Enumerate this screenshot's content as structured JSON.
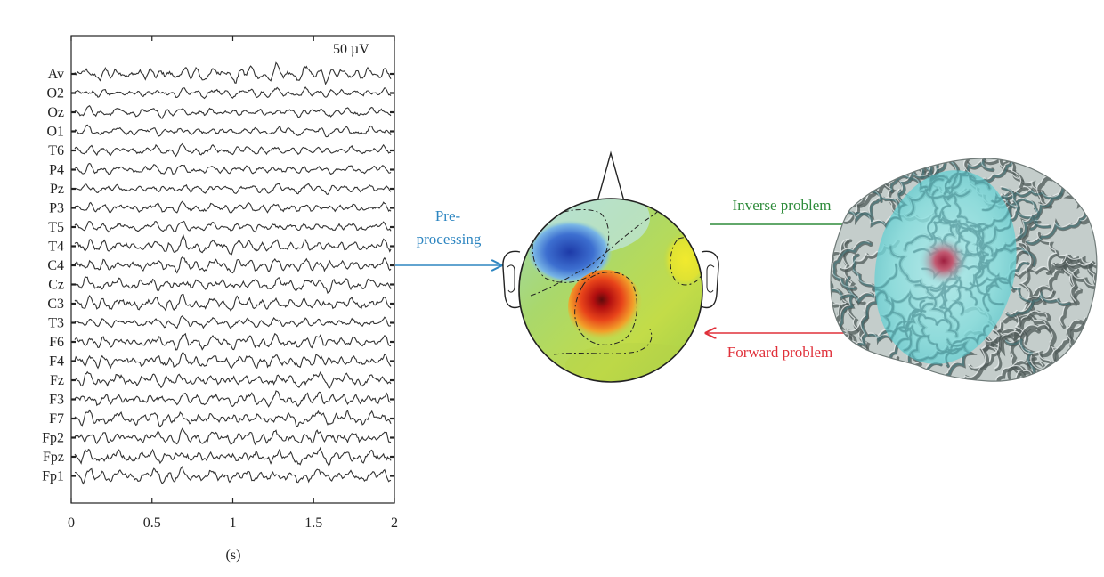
{
  "eeg": {
    "scale_label": "50 µV",
    "xlabel": "(s)",
    "xlim": [
      0,
      2
    ],
    "x_ticks": [
      "0",
      "0.5",
      "1",
      "1.5",
      "2"
    ],
    "channels": [
      "Av",
      "O2",
      "Oz",
      "O1",
      "T6",
      "P4",
      "Pz",
      "P3",
      "T5",
      "T4",
      "C4",
      "Cz",
      "C3",
      "T3",
      "F6",
      "F4",
      "Fz",
      "F3",
      "F7",
      "Fp2",
      "Fpz",
      "Fp1"
    ]
  },
  "arrows": {
    "preprocessing": {
      "label_lines": [
        "Pre-",
        "processing"
      ],
      "color": "#2e86c1"
    },
    "inverse": {
      "label": "Inverse problem",
      "color": "#2e8b3a"
    },
    "forward": {
      "label": "Forward problem",
      "color": "#e0303a"
    }
  },
  "topomap": {
    "name": "scalp potential map",
    "colors": {
      "negative": "#2a4fb0",
      "positive": "#d42a1a",
      "neutral": "#a8d450"
    }
  },
  "brain": {
    "name": "cortical source model",
    "colors": {
      "cortex": "#b9c3c1",
      "spread": "#7ee0e0",
      "focus": "#c25a72"
    }
  }
}
